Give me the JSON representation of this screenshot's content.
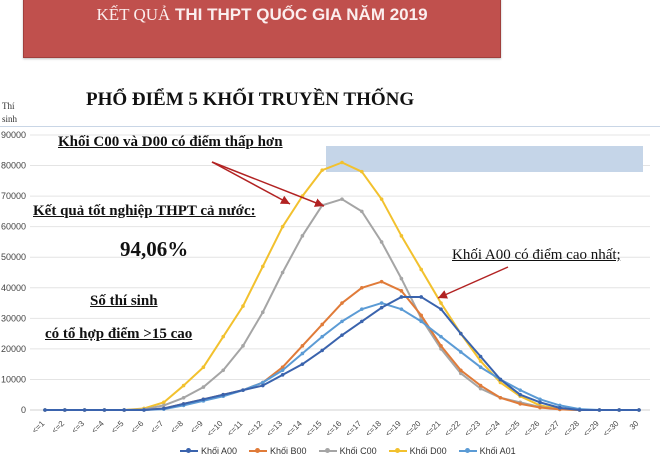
{
  "banner": {
    "title_part1": "KẾT QUẢ",
    "title_part2": " THI THPT QUỐC GIA NĂM 2019",
    "color": "#c0504d"
  },
  "subtitle": "PHỔ ĐIỂM 5 KHỐI TRUYỀN THỐNG",
  "y_axis_label": [
    "Thí",
    "sinh"
  ],
  "annotations": {
    "c00_d00_lower": "Khối C00 và D00 có điểm thấp hơn",
    "graduation_label": "Kết quả tốt nghiệp THPT cả nước:",
    "graduation_rate": "94,06%",
    "candidates_line1": "Số thí sinh",
    "candidates_line2": "có tổ hợp điểm >15 cao",
    "a00_highest": "Khối A00 có điểm cao nhất;"
  },
  "highlight_box_color": "#c5d5e8",
  "arrow_color": "#b22222",
  "chart_data": {
    "type": "line",
    "title": "PHỔ ĐIỂM 5 KHỐI TRUYỀN THỐNG",
    "xlabel": "",
    "ylabel": "Thí sinh",
    "ylim": [
      0,
      90000
    ],
    "yticks": [
      0,
      10000,
      20000,
      30000,
      40000,
      50000,
      60000,
      70000,
      80000,
      90000
    ],
    "grid": true,
    "legend_position": "bottom",
    "categories": [
      "<=1",
      "<=2",
      "<=3",
      "<=4",
      "<=5",
      "<=6",
      "<=7",
      "<=8",
      "<=9",
      "<=10",
      "<=11",
      "<=12",
      "<=13",
      "<=14",
      "<=15",
      "<=16",
      "<=17",
      "<=18",
      "<=19",
      "<=20",
      "<=21",
      "<=22",
      "<=23",
      "<=24",
      "<=25",
      "<=26",
      "<=27",
      "<=28",
      "<=29",
      "<=30",
      "30"
    ],
    "series": [
      {
        "name": "Khối A00",
        "color": "#3a63ad",
        "values": [
          0,
          0,
          0,
          0,
          0,
          0,
          500,
          2000,
          3500,
          5000,
          6500,
          8000,
          11500,
          15000,
          19500,
          24500,
          29000,
          33500,
          37000,
          37000,
          33000,
          25000,
          17500,
          10000,
          5000,
          2500,
          700,
          0,
          0,
          0,
          0
        ]
      },
      {
        "name": "Khối B00",
        "color": "#e07b39",
        "values": [
          0,
          0,
          0,
          0,
          0,
          0,
          500,
          2000,
          3500,
          5000,
          6500,
          9000,
          14000,
          21000,
          28000,
          35000,
          40000,
          42000,
          39000,
          31000,
          21000,
          13000,
          8000,
          4000,
          2000,
          800,
          200,
          0,
          0,
          0,
          0
        ]
      },
      {
        "name": "Khối C00",
        "color": "#a5a5a5",
        "values": [
          0,
          0,
          0,
          0,
          0,
          200,
          1500,
          4000,
          7500,
          13000,
          21000,
          32000,
          45000,
          57000,
          67000,
          69000,
          65000,
          55000,
          43000,
          30000,
          20000,
          12000,
          7000,
          4000,
          2500,
          1000,
          200,
          0,
          0,
          0,
          0
        ]
      },
      {
        "name": "Khối D00",
        "color": "#f2c12e",
        "values": [
          0,
          0,
          0,
          0,
          0,
          500,
          2500,
          8000,
          14000,
          24000,
          34000,
          47000,
          60000,
          70000,
          78500,
          81000,
          78000,
          69000,
          57000,
          46000,
          35000,
          25000,
          16000,
          9000,
          4500,
          1500,
          300,
          0,
          0,
          0,
          0
        ]
      },
      {
        "name": "Khối A01",
        "color": "#5b9bd5",
        "values": [
          0,
          0,
          0,
          0,
          0,
          0,
          300,
          1500,
          3000,
          4500,
          6500,
          9000,
          13000,
          18500,
          24000,
          29000,
          33000,
          35000,
          33000,
          29000,
          24000,
          19000,
          14000,
          10000,
          6500,
          3500,
          1500,
          300,
          0,
          0,
          0
        ]
      }
    ]
  }
}
